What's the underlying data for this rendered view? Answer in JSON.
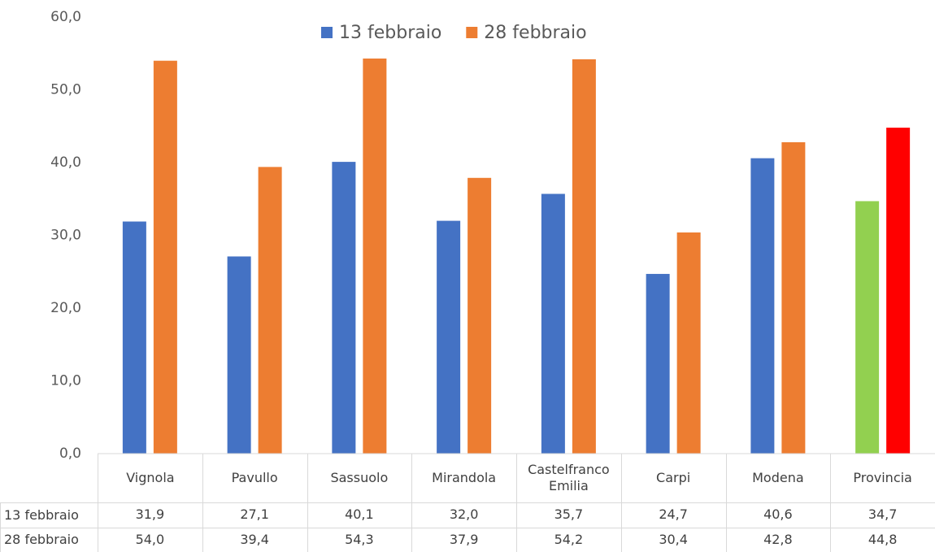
{
  "chart_data": {
    "type": "bar",
    "categories": [
      "Vignola",
      "Pavullo",
      "Sassuolo",
      "Mirandola",
      "Castelfranco Emilia",
      "Carpi",
      "Modena",
      "Provincia"
    ],
    "series": [
      {
        "name": "13 febbraio",
        "color": "#4472c4",
        "colors": [
          "#4472c4",
          "#4472c4",
          "#4472c4",
          "#4472c4",
          "#4472c4",
          "#4472c4",
          "#4472c4",
          "#92d050"
        ],
        "values": [
          31.9,
          27.1,
          40.1,
          32.0,
          35.7,
          24.7,
          40.6,
          34.7
        ],
        "value_labels": [
          "31,9",
          "27,1",
          "40,1",
          "32,0",
          "35,7",
          "24,7",
          "40,6",
          "34,7"
        ]
      },
      {
        "name": "28 febbraio",
        "color": "#ed7d31",
        "colors": [
          "#ed7d31",
          "#ed7d31",
          "#ed7d31",
          "#ed7d31",
          "#ed7d31",
          "#ed7d31",
          "#ed7d31",
          "#ff0000"
        ],
        "values": [
          54.0,
          39.4,
          54.3,
          37.9,
          54.2,
          30.4,
          42.8,
          44.8
        ],
        "value_labels": [
          "54,0",
          "39,4",
          "54,3",
          "37,9",
          "54,2",
          "30,4",
          "42,8",
          "44,8"
        ]
      }
    ],
    "ylim": [
      0,
      60
    ],
    "yticks": [
      {
        "value": 0,
        "label": "0,0"
      },
      {
        "value": 10,
        "label": "10,0"
      },
      {
        "value": 20,
        "label": "20,0"
      },
      {
        "value": 30,
        "label": "30,0"
      },
      {
        "value": 40,
        "label": "40,0"
      },
      {
        "value": 50,
        "label": "50,0"
      },
      {
        "value": 60,
        "label": "60,0"
      }
    ],
    "grid": false,
    "legend": "top"
  }
}
